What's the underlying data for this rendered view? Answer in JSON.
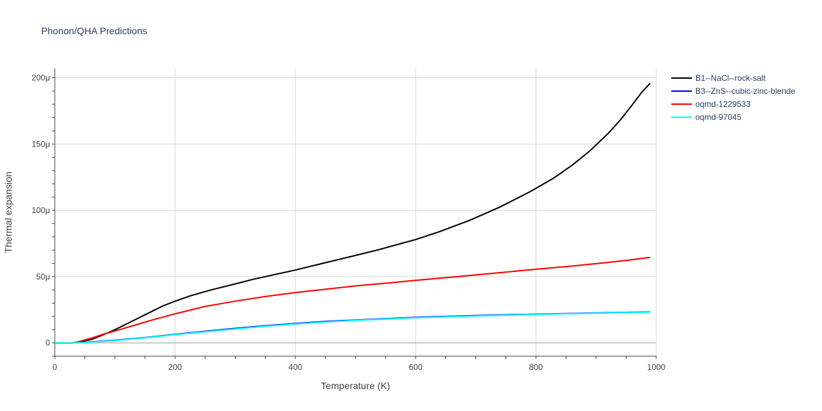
{
  "chart_data": {
    "type": "line",
    "title": "Phonon/QHA Predictions",
    "xlabel": "Temperature (K)",
    "ylabel": "Thermal expansion",
    "xlim": [
      0,
      1000
    ],
    "ylim": [
      -10,
      207
    ],
    "x_ticks": [
      0,
      200,
      400,
      600,
      800,
      1000
    ],
    "x_tick_labels": [
      "0",
      "200",
      "400",
      "600",
      "800",
      "1000"
    ],
    "y_ticks": [
      0,
      50,
      100,
      150,
      200
    ],
    "y_tick_labels": [
      "0",
      "50μ",
      "100μ",
      "150μ",
      "200μ"
    ],
    "y_unit_note": "values in units of 1e-6 (μ)",
    "grid": true,
    "legend_position": "top-right, outside plot",
    "series": [
      {
        "name": "B1--NaCl--rock-salt",
        "color": "#000000",
        "x": [
          0,
          30,
          40,
          60,
          80,
          100,
          120,
          140,
          160,
          180,
          200,
          225,
          260,
          300,
          330,
          400,
          450,
          500,
          540,
          580,
          600,
          640,
          690,
          740,
          790,
          830,
          860,
          890,
          920,
          940,
          960,
          975,
          990
        ],
        "y": [
          0,
          0,
          0.6,
          2.5,
          6,
          10,
          14.5,
          19,
          23.5,
          28,
          31.5,
          35.5,
          40,
          44.5,
          48,
          55,
          60.5,
          66,
          70.5,
          75.5,
          78,
          84,
          92.5,
          102.5,
          114,
          124.5,
          134,
          145,
          158,
          168,
          179.5,
          188.5,
          196
        ]
      },
      {
        "name": "B3--ZnS--cubic-zinc-blende",
        "color": "#0000ff",
        "x": [
          0,
          30,
          50,
          100,
          150,
          200,
          250,
          300,
          350,
          400,
          450,
          500,
          600,
          700,
          800,
          900,
          990
        ],
        "y": [
          0,
          0,
          0.4,
          2,
          4,
          6.5,
          8.8,
          11,
          13,
          14.7,
          16.2,
          17.3,
          19.3,
          20.7,
          21.7,
          22.6,
          23.4
        ]
      },
      {
        "name": "oqmd-1229533",
        "color": "#ff0000",
        "x": [
          0,
          30,
          40,
          60,
          80,
          100,
          130,
          160,
          200,
          250,
          300,
          350,
          400,
          450,
          500,
          550,
          600,
          650,
          700,
          750,
          800,
          850,
          900,
          950,
          990
        ],
        "y": [
          0,
          0,
          1,
          3.5,
          6.5,
          9,
          13,
          17,
          22,
          27.5,
          31.5,
          35,
          38,
          40.5,
          43,
          45,
          47.2,
          49.2,
          51.3,
          53.4,
          55.6,
          57.6,
          59.8,
          62.2,
          64.5
        ]
      },
      {
        "name": "oqmd-97045",
        "color": "#00ffff",
        "x": [
          0,
          30,
          50,
          100,
          150,
          200,
          250,
          300,
          350,
          400,
          450,
          500,
          600,
          700,
          800,
          900,
          990
        ],
        "y": [
          0,
          0,
          0.3,
          1.8,
          3.8,
          6.2,
          8.4,
          10.5,
          12.6,
          14.3,
          15.8,
          17,
          19,
          20.4,
          21.5,
          22.4,
          23.2
        ]
      }
    ]
  }
}
